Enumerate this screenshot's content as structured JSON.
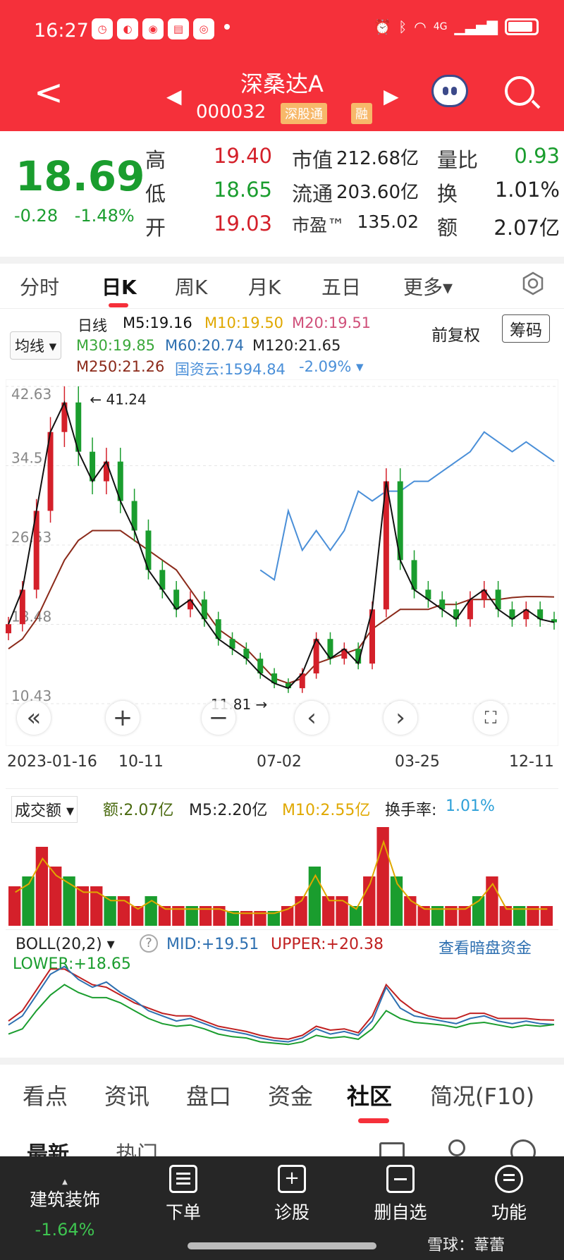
{
  "status_bar": {
    "time": "16:27",
    "network": "4G"
  },
  "header": {
    "back_label": "<",
    "stock_name": "深桑达A",
    "stock_code": "000032",
    "badge_connect": "深股通",
    "badge_margin": "融",
    "prev_label": "◀",
    "next_label": "▶"
  },
  "quote": {
    "price": "18.69",
    "change": "-0.28",
    "change_pct": "-1.48%",
    "high_label": "高",
    "high_value": "19.40",
    "low_label": "低",
    "low_value": "18.65",
    "open_label": "开",
    "open_value": "19.03",
    "mktcap_label": "市值",
    "mktcap_value": "212.68亿",
    "float_label": "流通",
    "float_value": "203.60亿",
    "pe_label": "市盈™",
    "pe_value": "135.02",
    "volratio_label": "量比",
    "volratio_value": "0.93",
    "turnover_label": "换",
    "turnover_value": "1.01%",
    "amount_label": "额",
    "amount_value": "2.07亿"
  },
  "chart_tabs": [
    {
      "label": "分时"
    },
    {
      "label": "日K"
    },
    {
      "label": "周K"
    },
    {
      "label": "月K"
    },
    {
      "label": "五日"
    },
    {
      "label": "更多▾"
    }
  ],
  "ma_legend": {
    "indicator": "均线 ▾",
    "period": "日线",
    "m5": "M5:19.16",
    "m10": "M10:19.50",
    "m20": "M20:19.51",
    "m30": "M30:19.85",
    "m60": "M60:20.74",
    "m120": "M120:21.65",
    "m250": "M250:21.26",
    "index": "国资云:1594.84",
    "index_chg": "-2.09% ▾",
    "adjust": "前复权",
    "chip_button": "筹码",
    "colors": {
      "m5": "#111111",
      "m10": "#e0a800",
      "m20": "#d0507a",
      "m30": "#3aa83a",
      "m60": "#2d6fb0",
      "m120": "#222222",
      "m250": "#8b2a1a",
      "index": "#4a8fd8"
    }
  },
  "chart_data": {
    "type": "line",
    "title": "",
    "ylim": [
      10.43,
      42.63
    ],
    "yticks": [
      "42.63",
      "34.5",
      "26.53",
      "18.48",
      "10.43"
    ],
    "high_annotation": "41.24",
    "low_annotation": "11.81",
    "x_ticks": [
      "2023-01-16",
      "10-11",
      "07-02",
      "03-25",
      "12-11"
    ],
    "close_series": [
      18.5,
      22,
      30,
      38,
      41,
      36,
      33,
      35,
      31,
      28,
      24,
      22,
      20,
      21,
      19,
      17,
      16,
      15,
      13.5,
      12.5,
      12,
      13.5,
      17,
      15,
      16,
      14.5,
      20,
      33,
      25,
      22,
      21,
      20,
      19,
      21,
      22,
      20,
      19,
      20,
      19,
      18.69
    ],
    "index_series": [
      null,
      null,
      null,
      null,
      null,
      null,
      null,
      null,
      null,
      null,
      null,
      null,
      null,
      null,
      null,
      null,
      null,
      null,
      24,
      23,
      30,
      26,
      28,
      26,
      28,
      32,
      31,
      32,
      32,
      33,
      33,
      34,
      35,
      36,
      38,
      37,
      36,
      37,
      36,
      35
    ],
    "ma250_series": [
      16,
      17,
      19,
      22,
      25,
      27,
      28,
      28,
      28,
      27,
      26,
      25,
      24,
      22,
      20,
      18,
      17,
      16,
      14.5,
      13,
      12.5,
      13,
      14.5,
      15,
      15.5,
      16,
      18,
      19,
      20,
      20,
      20,
      20.5,
      20.5,
      21,
      21,
      21,
      21.2,
      21.3,
      21.3,
      21.26
    ],
    "volume": {
      "label": "成交额 ▾",
      "amount": "额:2.07亿",
      "m5": "M5:2.20亿",
      "m10": "M10:2.55亿",
      "turnover_label": "换手率:",
      "turnover_value": "1.01%",
      "values": [
        4,
        5,
        8,
        6,
        5,
        4,
        4,
        3,
        3,
        2,
        3,
        2,
        2,
        2,
        2,
        2,
        1.5,
        1.5,
        1.5,
        1.5,
        2,
        3,
        6,
        3,
        3,
        2,
        5,
        10,
        5,
        3,
        2,
        2,
        2,
        2,
        3,
        5,
        2,
        2,
        2,
        2
      ]
    },
    "boll": {
      "label": "BOLL(20,2) ▾",
      "mid": "MID:+19.51",
      "upper": "UPPER:+20.38",
      "lower": "LOWER:+18.65",
      "dark_pool": "查看暗盘资金",
      "upper_series": [
        20,
        24,
        32,
        40,
        40,
        37,
        34,
        33,
        30,
        27,
        25,
        23,
        22,
        22,
        20,
        18,
        17,
        16,
        14.5,
        13.5,
        13,
        14.5,
        18,
        16.5,
        17,
        15.5,
        22,
        34,
        28,
        24,
        22,
        21,
        21,
        23,
        23,
        21,
        21,
        21,
        20.5,
        20.38
      ],
      "lower_series": [
        15,
        17,
        24,
        30,
        34,
        31,
        29,
        29,
        27,
        24,
        21,
        19,
        18,
        18.5,
        17,
        15,
        14,
        13.5,
        12,
        11.5,
        11,
        12,
        14.5,
        13.5,
        14,
        13,
        17,
        24,
        21,
        19.5,
        19,
        18.5,
        17.5,
        19,
        19.5,
        18.5,
        17.5,
        18.5,
        18,
        18.65
      ]
    }
  },
  "nav_buttons": {
    "left": "«",
    "zoom_in": "+",
    "zoom_out": "−",
    "prev": "‹",
    "next": "›"
  },
  "bottom_tabs": [
    {
      "label": "看点"
    },
    {
      "label": "资讯"
    },
    {
      "label": "盘口"
    },
    {
      "label": "资金"
    },
    {
      "label": "社区"
    },
    {
      "label": "简况(F10)"
    }
  ],
  "sub_tabs": {
    "latest": "最新",
    "hot": "热门"
  },
  "bottom_bar": {
    "sector_name": "建筑装饰",
    "sector_chg": "-1.64%",
    "items": [
      {
        "label": "下单"
      },
      {
        "label": "诊股"
      },
      {
        "label": "删自选"
      },
      {
        "label": "功能"
      }
    ],
    "watermark": "雪球：葦蕾"
  }
}
